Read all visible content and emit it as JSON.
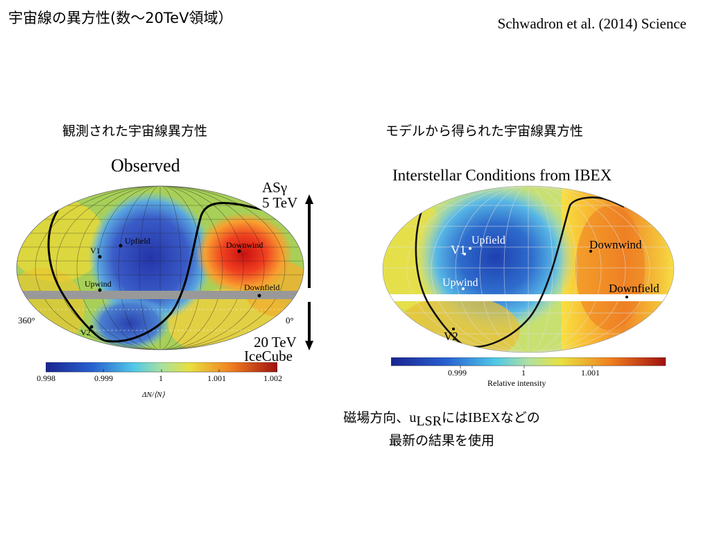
{
  "slide": {
    "title": "宇宙線の異方性(数～20TeV領域）",
    "citation": "Schwadron et al. (2014) Science"
  },
  "left": {
    "caption": "観測された宇宙線異方性",
    "panel_title": "Observed",
    "exp1_line1": "ASγ",
    "exp1_line2": "5 TeV",
    "exp2_line1": "20 TeV",
    "exp2_line2": "IceCube",
    "labels": {
      "upfield": "Upfield",
      "v1": "V1",
      "downwind": "Downwind",
      "upwind": "Upwind",
      "downfield": "Downfield",
      "v2": "V2",
      "lon_left": "360°",
      "lon_right": "0°"
    },
    "colorbar": {
      "ticks": [
        "0.998",
        "0.999",
        "1",
        "1.001",
        "1.002"
      ],
      "label": "ΔN/⟨N⟩"
    }
  },
  "right": {
    "caption": "モデルから得られた宇宙線異方性",
    "panel_title": "Interstellar Conditions from IBEX",
    "labels": {
      "upfield": "Upfield",
      "v1": "V1",
      "downwind": "Downwind",
      "upwind": "Upwind",
      "downfield": "Downfield",
      "v2": "V2"
    },
    "colorbar": {
      "ticks": [
        "0.999",
        "1",
        "1.001"
      ],
      "label": "Relative intensity"
    }
  },
  "note": {
    "line1_before": "磁場方向、",
    "u": "u",
    "sub": "LSR",
    "line1_mid": "には",
    "ibex": "IBEX",
    "line1_after": "などの",
    "line2": "最新の結果を使用"
  },
  "colors": {
    "cold": "#2438a8",
    "warm": "#d42418",
    "gap": "#999999"
  }
}
